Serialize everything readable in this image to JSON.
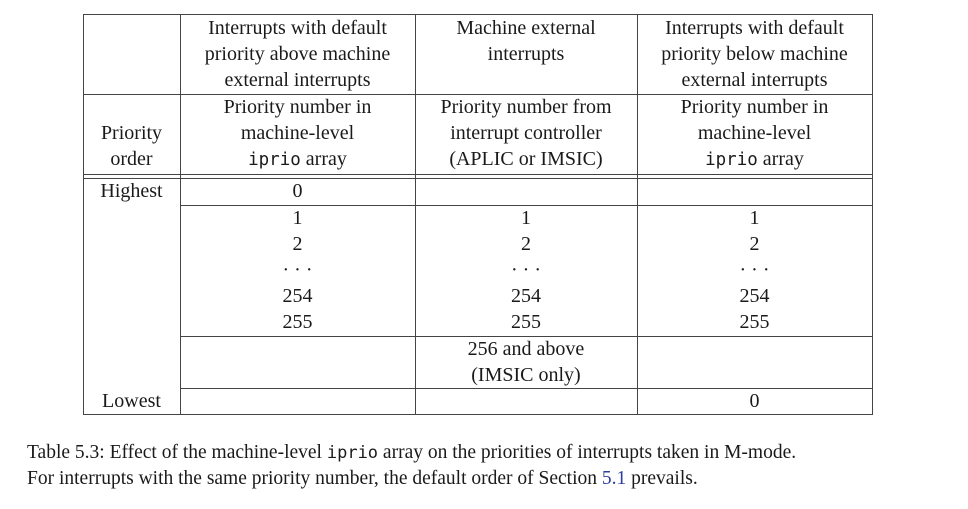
{
  "table": {
    "header": {
      "col1": [
        "Interrupts with default",
        "priority above machine",
        "external interrupts"
      ],
      "col2": [
        "Machine external",
        "interrupts"
      ],
      "col3": [
        "Interrupts with default",
        "priority below machine",
        "external interrupts"
      ]
    },
    "subheader": {
      "row_label": [
        "Priority",
        "order"
      ],
      "col1": {
        "line1": "Priority number in",
        "line2": "machine-level",
        "code": "iprio",
        "suffix": " array"
      },
      "col2": [
        "Priority number from",
        "interrupt controller",
        "(APLIC or IMSIC)"
      ],
      "col3": {
        "line1": "Priority number in",
        "line2": "machine-level",
        "code": "iprio",
        "suffix": " array"
      }
    },
    "rows": {
      "highest_label": "Highest",
      "highest_col1": "0",
      "middle_col1": [
        "1",
        "2",
        "· · ·",
        "254",
        "255"
      ],
      "middle_col2": [
        "1",
        "2",
        "· · ·",
        "254",
        "255"
      ],
      "middle_col3": [
        "1",
        "2",
        "· · ·",
        "254",
        "255"
      ],
      "imsic_col2": [
        "256 and above",
        "(IMSIC only)"
      ],
      "lowest_label": "Lowest",
      "lowest_col3": "0"
    }
  },
  "caption": {
    "prefix": "Table 5.3: Effect of the machine-level ",
    "code": "iprio",
    "middle": " array on the priorities of interrupts taken in M-mode.",
    "line2_prefix": "For interrupts with the same priority number, the default order of Section ",
    "section_ref": "5.1",
    "line2_suffix": " prevails."
  }
}
